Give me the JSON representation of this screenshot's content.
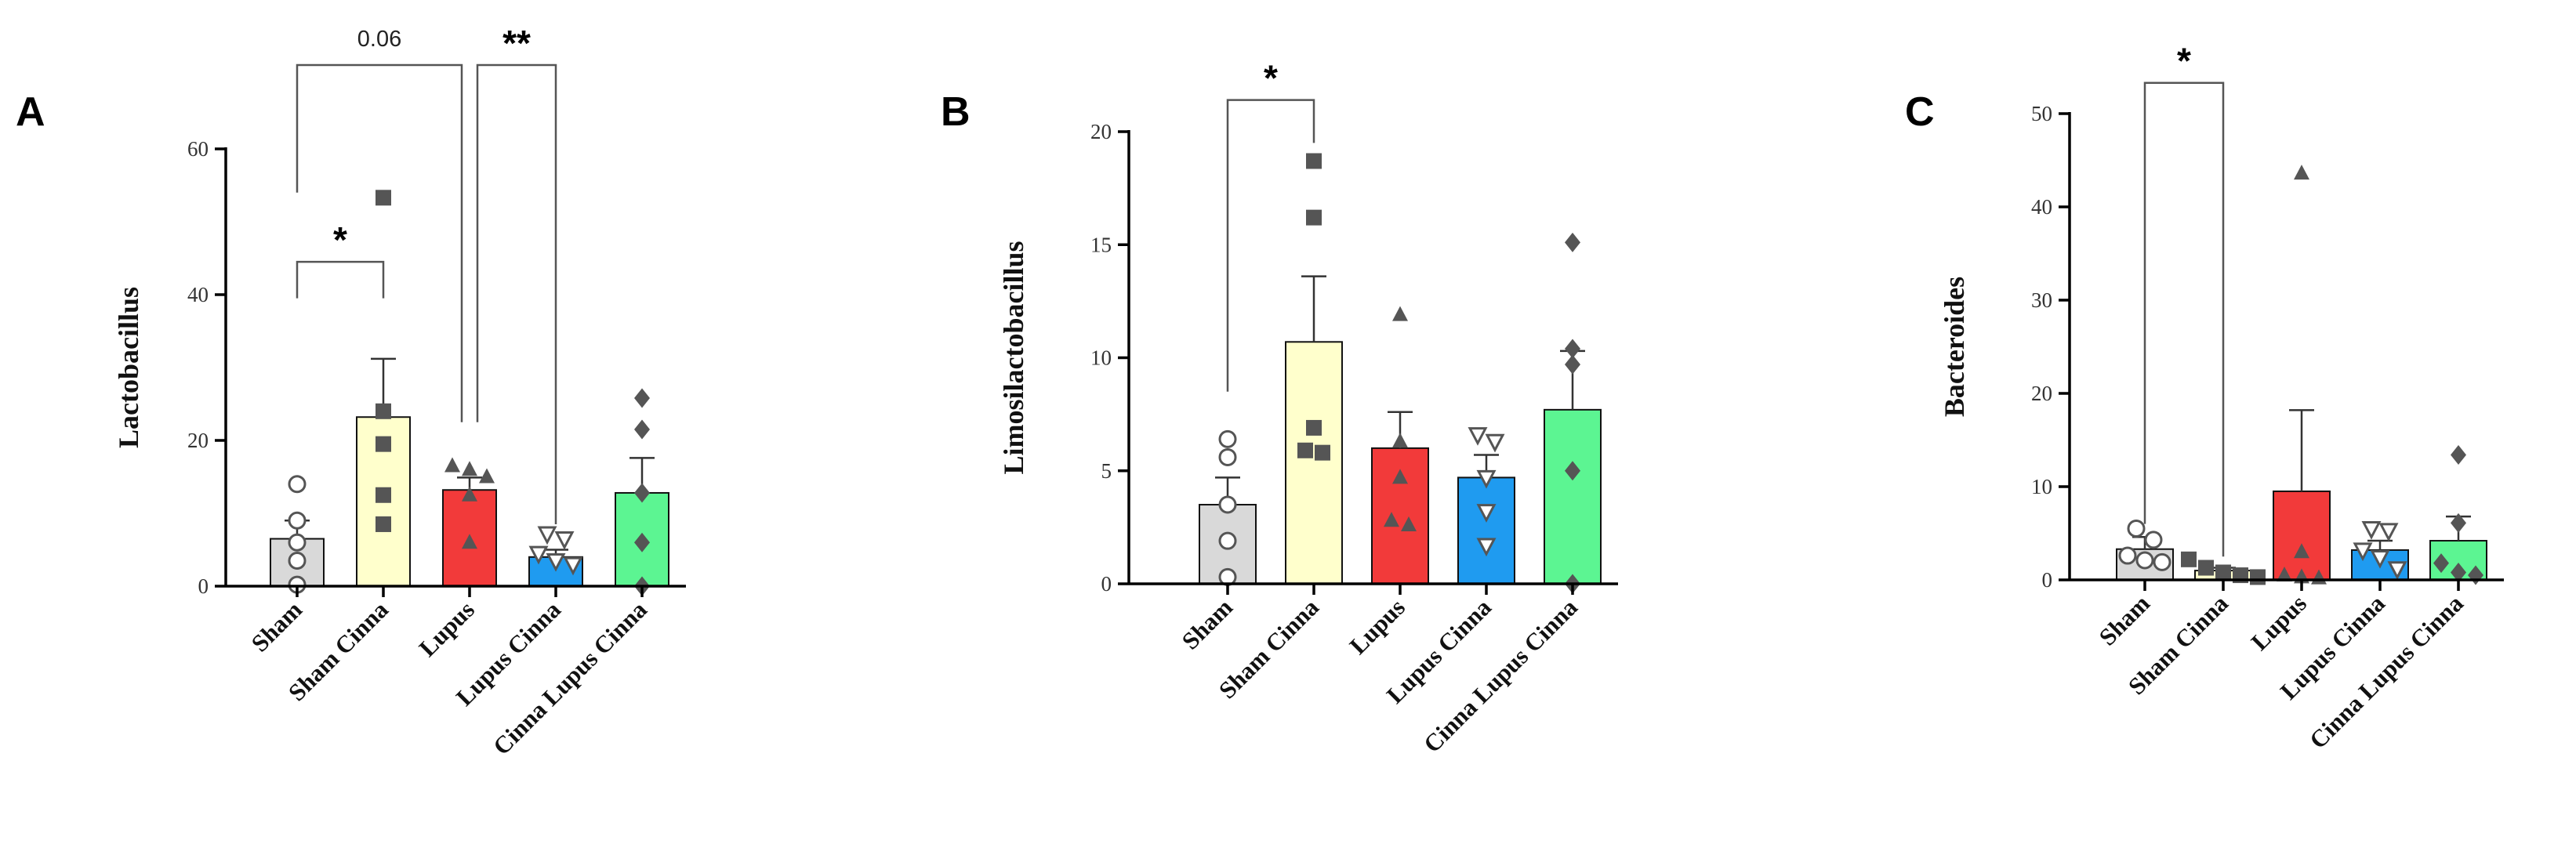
{
  "chart_data": [
    {
      "type": "bar",
      "panel": "A",
      "ylabel": "Lactobacillus",
      "ylim": [
        0,
        60
      ],
      "yticks": [
        0,
        20,
        40,
        60
      ],
      "categories": [
        "Sham",
        "Sham Cinna",
        "Lupus",
        "Lupus Cinna",
        "Cinna Lupus Cinna"
      ],
      "colors": [
        "#d9d9d9",
        "#ffffcc",
        "#f23a3a",
        "#1f9bf0",
        "#5cf592"
      ],
      "values": [
        6.5,
        23.2,
        13.2,
        4.0,
        12.8
      ],
      "errors": [
        2.5,
        8.0,
        1.7,
        1.0,
        4.8
      ],
      "points": [
        [
          14.0,
          9.0,
          6.0,
          3.5,
          0.2
        ],
        [
          53.3,
          24.0,
          19.5,
          12.5,
          8.5
        ],
        [
          16.5,
          16.0,
          15.0,
          12.5,
          6.0
        ],
        [
          7.2,
          6.5,
          4.5,
          3.5,
          3.0
        ],
        [
          25.8,
          21.5,
          12.8,
          6.0,
          0.0
        ]
      ],
      "markers": [
        "circle-open",
        "square",
        "triangle",
        "triangle-down-open",
        "diamond"
      ],
      "annotations": [
        {
          "from": 0,
          "to": 1,
          "label": "*"
        },
        {
          "from": 0,
          "to": 2,
          "label": "0.06"
        },
        {
          "from": 2,
          "to": 3,
          "label": "**"
        }
      ]
    },
    {
      "type": "bar",
      "panel": "B",
      "ylabel": "Limosilactobacillus",
      "ylim": [
        0,
        20
      ],
      "yticks": [
        0,
        5,
        10,
        15,
        20
      ],
      "categories": [
        "Sham",
        "Sham Cinna",
        "Lupus",
        "Lupus Cinna",
        "Cinna Lupus Cinna"
      ],
      "colors": [
        "#d9d9d9",
        "#ffffcc",
        "#f23a3a",
        "#1f9bf0",
        "#5cf592"
      ],
      "values": [
        3.5,
        10.7,
        6.0,
        4.7,
        7.7
      ],
      "errors": [
        1.2,
        2.9,
        1.6,
        1.0,
        2.6
      ],
      "points": [
        [
          6.4,
          5.6,
          3.5,
          1.9,
          0.3
        ],
        [
          18.7,
          16.2,
          6.9,
          5.9,
          5.8
        ],
        [
          11.9,
          6.3,
          4.7,
          2.8,
          2.6
        ],
        [
          6.6,
          6.3,
          4.7,
          3.2,
          1.7
        ],
        [
          15.1,
          10.4,
          9.7,
          5.0,
          0.0
        ]
      ],
      "markers": [
        "circle-open",
        "square",
        "triangle",
        "triangle-down-open",
        "diamond"
      ],
      "annotations": [
        {
          "from": 0,
          "to": 1,
          "label": "*"
        }
      ]
    },
    {
      "type": "bar",
      "panel": "C",
      "ylabel": "Bacteroides",
      "ylim": [
        0,
        50
      ],
      "yticks": [
        0,
        10,
        20,
        30,
        40,
        50
      ],
      "categories": [
        "Sham",
        "Sham Cinna",
        "Lupus",
        "Lupus Cinna",
        "Cinna Lupus Cinna"
      ],
      "colors": [
        "#d9d9d9",
        "#ffffcc",
        "#f23a3a",
        "#1f9bf0",
        "#5cf592"
      ],
      "values": [
        3.3,
        1.0,
        9.5,
        3.2,
        4.2
      ],
      "errors": [
        1.3,
        0.3,
        8.7,
        1.0,
        2.6
      ],
      "points": [
        [
          5.5,
          4.3,
          2.6,
          2.1,
          1.9
        ],
        [
          2.2,
          1.3,
          0.8,
          0.5,
          0.3
        ],
        [
          43.6,
          3.0,
          0.5,
          0.3,
          0.2
        ],
        [
          5.5,
          5.3,
          3.2,
          2.4,
          1.2
        ],
        [
          13.4,
          6.1,
          1.8,
          0.8,
          0.5
        ]
      ],
      "markers": [
        "circle-open",
        "square",
        "triangle",
        "triangle-down-open",
        "diamond"
      ],
      "annotations": [
        {
          "from": 0,
          "to": 1,
          "label": "*"
        }
      ]
    }
  ]
}
